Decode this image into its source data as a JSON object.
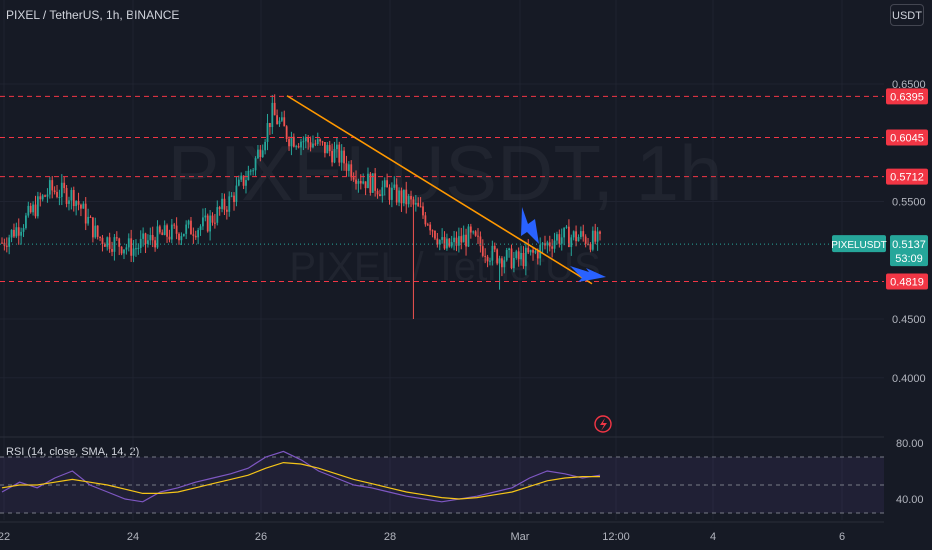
{
  "header": {
    "title": "PIXEL / TetherUS, 1h, BINANCE",
    "currency_button": "USDT"
  },
  "colors": {
    "background": "#161a25",
    "up": "#26a69a",
    "down": "#ef5350",
    "trendline": "#ff9800",
    "level_line": "#f23645",
    "arrow": "#2962ff",
    "rsi_line": "#7e57c2",
    "rsi_ma": "#f5c518"
  },
  "watermark": {
    "symbol": "PIXELUSDT, 1h",
    "pair": "PIXEL / TetherUS"
  },
  "chart_data": [
    {
      "type": "candlestick",
      "symbol": "PIXELUSDT",
      "interval": "1h",
      "y_ticks": [
        0.65,
        0.55,
        0.45,
        0.4
      ],
      "y_tick_labels": [
        "0.6500",
        "0.5500",
        "0.4500",
        "0.4000"
      ],
      "x_tick_labels": [
        "22",
        "24",
        "26",
        "28",
        "Mar",
        "12:00",
        "4",
        "6"
      ],
      "horizontal_levels": [
        {
          "value": 0.6395,
          "label": "0.6395"
        },
        {
          "value": 0.6045,
          "label": "0.6045"
        },
        {
          "value": 0.5712,
          "label": "0.5712"
        },
        {
          "value": 0.4819,
          "label": "0.4819"
        }
      ],
      "last_price": {
        "value": 0.5137,
        "label": "0.5137",
        "symbol_label": "PIXELUSDT",
        "countdown": "53:09"
      },
      "trendline": {
        "start_price": 0.64,
        "end_price": 0.48
      },
      "price_path": [
        {
          "bar": 0,
          "price": 0.515
        },
        {
          "bar": 10,
          "price": 0.535
        },
        {
          "bar": 20,
          "price": 0.56
        },
        {
          "bar": 30,
          "price": 0.555
        },
        {
          "bar": 40,
          "price": 0.52
        },
        {
          "bar": 55,
          "price": 0.51
        },
        {
          "bar": 65,
          "price": 0.52
        },
        {
          "bar": 75,
          "price": 0.525
        },
        {
          "bar": 85,
          "price": 0.53
        },
        {
          "bar": 95,
          "price": 0.55
        },
        {
          "bar": 105,
          "price": 0.58
        },
        {
          "bar": 113,
          "price": 0.625
        },
        {
          "bar": 120,
          "price": 0.605
        },
        {
          "bar": 130,
          "price": 0.6
        },
        {
          "bar": 140,
          "price": 0.59
        },
        {
          "bar": 150,
          "price": 0.57
        },
        {
          "bar": 160,
          "price": 0.56
        },
        {
          "bar": 170,
          "price": 0.55
        },
        {
          "bar": 178,
          "price": 0.535
        },
        {
          "bar": 185,
          "price": 0.51
        },
        {
          "bar": 195,
          "price": 0.52
        },
        {
          "bar": 205,
          "price": 0.505
        },
        {
          "bar": 215,
          "price": 0.5
        },
        {
          "bar": 222,
          "price": 0.505
        },
        {
          "bar": 232,
          "price": 0.52
        },
        {
          "bar": 242,
          "price": 0.52
        },
        {
          "bar": 250,
          "price": 0.515
        }
      ]
    },
    {
      "type": "line",
      "title": "RSI (14, close, SMA, 14, 2)",
      "y_ticks": [
        80,
        40
      ],
      "y_tick_labels": [
        "80.00",
        "40.00"
      ],
      "band": [
        70,
        30
      ],
      "midline": 50,
      "series": [
        {
          "key": "rsi",
          "values": [
            45,
            52,
            48,
            55,
            60,
            50,
            45,
            40,
            38,
            45,
            48,
            52,
            55,
            58,
            62,
            70,
            74,
            68,
            60,
            55,
            50,
            48,
            45,
            42,
            40,
            38,
            40,
            42,
            45,
            48,
            55,
            60,
            58,
            55,
            57
          ]
        },
        {
          "key": "rsi_ma",
          "values": [
            48,
            50,
            50,
            52,
            54,
            52,
            50,
            47,
            44,
            44,
            45,
            48,
            51,
            54,
            57,
            62,
            66,
            65,
            62,
            58,
            54,
            51,
            48,
            45,
            43,
            41,
            40,
            41,
            43,
            45,
            49,
            53,
            55,
            56,
            56
          ]
        }
      ]
    }
  ]
}
